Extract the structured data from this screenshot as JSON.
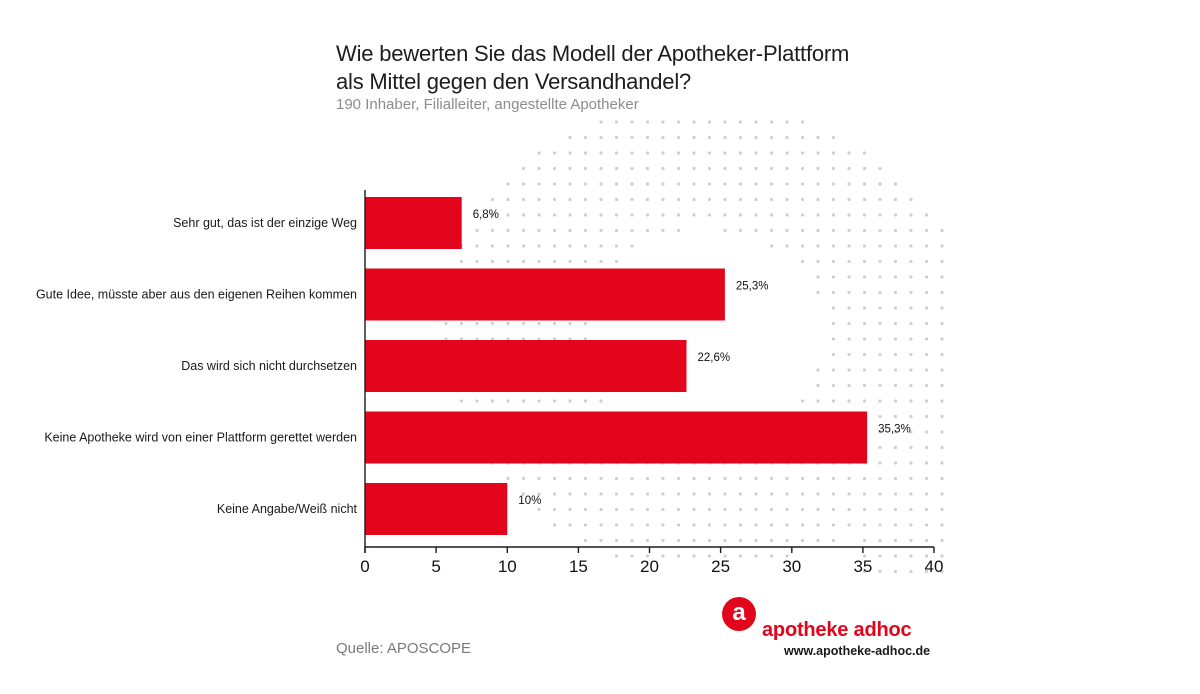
{
  "header": {
    "title_line1": "Wie bewerten Sie das Modell der Apotheker-Plattform",
    "title_line2": "als Mittel gegen den Versandhandel?",
    "subtitle": "190 Inhaber, Filialleiter, angestellte Apotheker"
  },
  "chart_data": {
    "type": "bar",
    "orientation": "horizontal",
    "title": "Wie bewerten Sie das Modell der Apotheker-Plattform als Mittel gegen den Versandhandel?",
    "subtitle": "190 Inhaber, Filialleiter, angestellte Apotheker",
    "categories": [
      "Sehr gut, das ist der einzige Weg",
      "Gute Idee, müsste aber aus den eigenen Reihen kommen",
      "Das wird sich nicht durchsetzen",
      "Keine Apotheke wird von einer Plattform gerettet werden",
      "Keine Angabe/Weiß nicht"
    ],
    "values": [
      6.8,
      25.3,
      22.6,
      35.3,
      10
    ],
    "value_labels": [
      "6,8%",
      "25,3%",
      "22,6%",
      "35,3%",
      "10%"
    ],
    "xlim": [
      0,
      40
    ],
    "xticks": [
      0,
      5,
      10,
      15,
      20,
      25,
      30,
      35,
      40
    ],
    "xlabel": "",
    "ylabel": "",
    "bar_color": "#e3051b",
    "grid": false,
    "legend": "none"
  },
  "footer": {
    "source": "Quelle: APOSCOPE",
    "brand_letter": "a",
    "brand_name": "apotheke adhoc",
    "brand_url": "www.apotheke-adhoc.de",
    "brand_color": "#e3051b"
  }
}
